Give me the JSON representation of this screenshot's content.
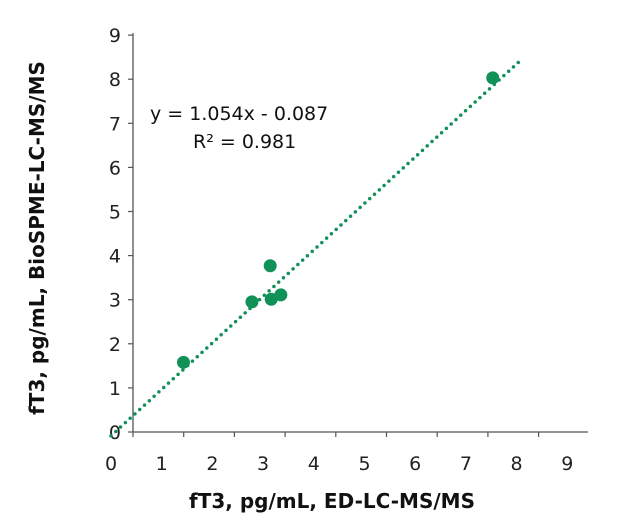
{
  "chart_data": {
    "type": "scatter",
    "xlabel": "fT3, pg/mL, ED-LC-MS/MS",
    "ylabel": "fT3, pg/mL, BioSPME-LC-MS/MS",
    "xlim": [
      0,
      9
    ],
    "ylim": [
      0,
      9
    ],
    "xticks": [
      "0",
      "1",
      "2",
      "3",
      "4",
      "5",
      "6",
      "7",
      "8",
      "9"
    ],
    "yticks": [
      "0",
      "1",
      "2",
      "3",
      "4",
      "5",
      "6",
      "7",
      "8",
      "9"
    ],
    "grid": false,
    "points": [
      {
        "x": 1.43,
        "y": 1.58
      },
      {
        "x": 2.78,
        "y": 2.95
      },
      {
        "x": 3.14,
        "y": 3.77
      },
      {
        "x": 3.16,
        "y": 3.01
      },
      {
        "x": 3.35,
        "y": 3.11
      },
      {
        "x": 7.53,
        "y": 8.03
      }
    ],
    "trendline": {
      "slope": 1.054,
      "intercept": -0.087,
      "x_range": [
        0,
        8.1
      ],
      "style": "dotted"
    },
    "annotations": [
      "y = 1.054x - 0.087",
      "R² = 0.981"
    ],
    "color": "#0f9158"
  }
}
